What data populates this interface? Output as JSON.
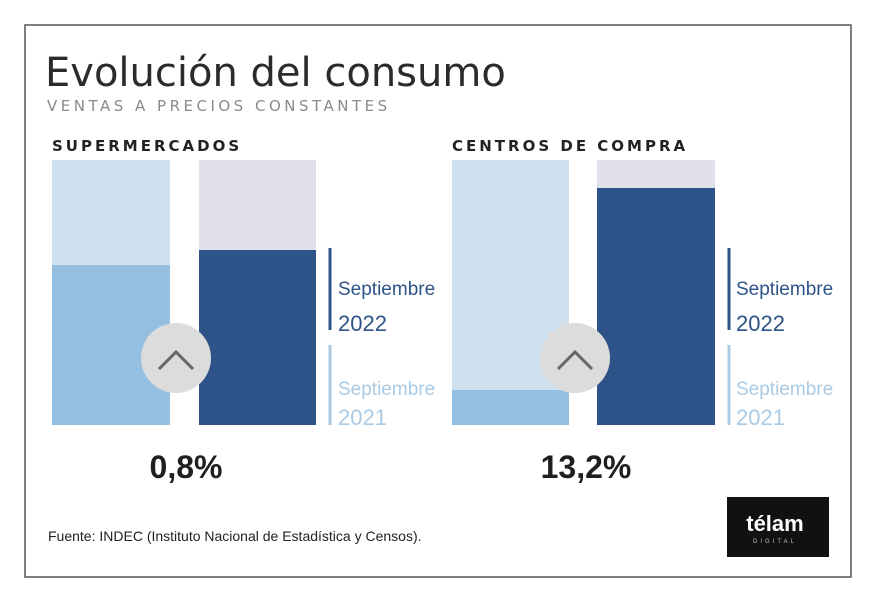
{
  "header": {
    "title": "Evolución del consumo",
    "subtitle": "VENTAS A PRECIOS CONSTANTES"
  },
  "panels": [
    {
      "label": "SUPERMERCADOS",
      "legend": [
        {
          "month": "Septiembre",
          "year": "2022"
        },
        {
          "month": "Septiembre",
          "year": "2021"
        }
      ],
      "change": "0,8%"
    },
    {
      "label": "CENTROS DE COMPRA",
      "legend": [
        {
          "month": "Septiembre",
          "year": "2022"
        },
        {
          "month": "Septiembre",
          "year": "2021"
        }
      ],
      "change": "13,2%"
    }
  ],
  "footer": {
    "source": "Fuente: INDEC (Instituto Nacional de Estadística y Censos).",
    "logo": "télam",
    "logo_sub": "DIGITAL"
  }
}
